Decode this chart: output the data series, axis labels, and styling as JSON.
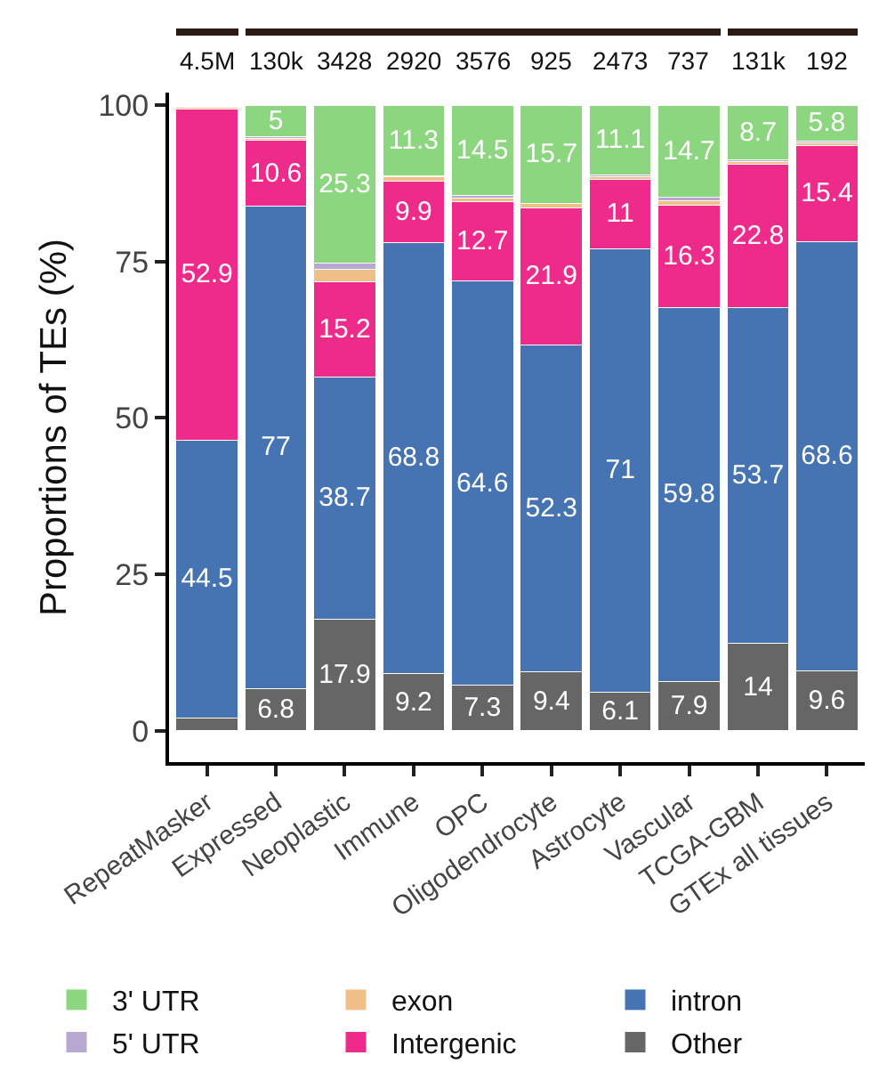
{
  "chart_data": {
    "type": "bar",
    "stacked": true,
    "ylabel": "Proportions of TEs (%)",
    "categories": [
      "RepeatMasker",
      "Expressed",
      "Neoplastic",
      "Immune",
      "OPC",
      "Oligodendrocyte",
      "Astrocyte",
      "Vascular",
      "TCGA-GBM",
      "GTEx all tissues"
    ],
    "series": [
      {
        "name": "Other",
        "color": "#666666",
        "values": [
          2,
          6.8,
          17.9,
          9.2,
          7.3,
          9.4,
          6.1,
          7.9,
          14,
          9.6
        ],
        "value_labels": [
          null,
          "6.8",
          "17.9",
          "9.2",
          "7.3",
          "9.4",
          "6.1",
          "7.9",
          "14",
          "9.6"
        ]
      },
      {
        "name": "intron",
        "color": "#4673b1",
        "values": [
          44.5,
          77,
          38.7,
          68.8,
          64.6,
          52.3,
          71,
          59.8,
          53.7,
          68.6
        ],
        "value_labels": [
          "44.5",
          "77",
          "38.7",
          "68.8",
          "64.6",
          "52.3",
          "71",
          "59.8",
          "53.7",
          "68.6"
        ]
      },
      {
        "name": "Intergenic",
        "color": "#ee2a8b",
        "values": [
          52.9,
          10.6,
          15.2,
          9.9,
          12.7,
          21.9,
          11,
          16.3,
          22.8,
          15.4
        ],
        "value_labels": [
          "52.9",
          "10.6",
          "15.2",
          "9.9",
          "12.7",
          "21.9",
          "11",
          "16.3",
          "22.8",
          "15.4"
        ]
      },
      {
        "name": "exon",
        "color": "#efbf87",
        "values": [
          0.3,
          0.3,
          1.9,
          0.6,
          0.6,
          0.7,
          0.4,
          0.7,
          0.5,
          0.4
        ]
      },
      {
        "name": "5' UTR",
        "color": "#b8a9d3",
        "values": [
          0.1,
          0.3,
          1,
          0.2,
          0.3,
          0,
          0.4,
          0.6,
          0.3,
          0.2
        ]
      },
      {
        "name": "3' UTR",
        "color": "#8dd680",
        "values": [
          0.2,
          5,
          25.3,
          11.3,
          14.5,
          15.7,
          11.1,
          14.7,
          8.7,
          5.8
        ],
        "value_labels": [
          null,
          "5",
          "25.3",
          "11.3",
          "14.5",
          "15.7",
          "11.1",
          "14.7",
          "8.7",
          "5.8"
        ]
      }
    ],
    "ylim": [
      -5,
      102
    ],
    "yticks": [
      0,
      25,
      50,
      75,
      100
    ],
    "grid": false,
    "legend": "bottom",
    "annotations": [
      "4.5M",
      "130k",
      "3428",
      "2920",
      "3576",
      "925",
      "2473",
      "737",
      "131k",
      "192"
    ]
  }
}
